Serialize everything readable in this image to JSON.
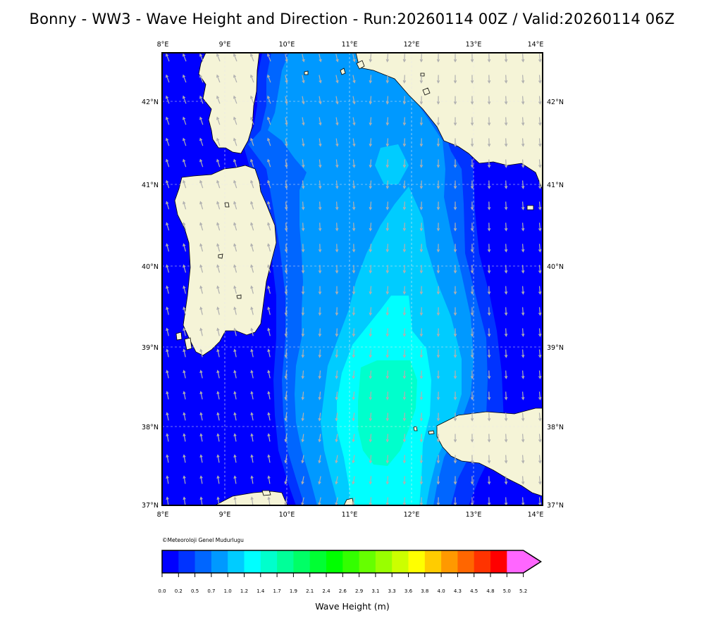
{
  "title": "Bonny - WW3 - Wave Height and Direction - Run:20260114 00Z / Valid:20260114 06Z",
  "credit": "©Meteoroloji Genel Mudurlugu",
  "map": {
    "lon_labels": [
      "8°E",
      "9°E",
      "10°E",
      "11°E",
      "12°E",
      "13°E",
      "14°E"
    ],
    "lat_labels": [
      "42°N",
      "41°N",
      "40°N",
      "39°N",
      "38°N",
      "37°N"
    ],
    "land_color": "#f5f4d7",
    "arrow_color": "#b0b0b0"
  },
  "colorbar": {
    "title": "Wave Height (m)",
    "ticks": [
      "0.0",
      "0.2",
      "0.5",
      "0.7",
      "1.0",
      "1.2",
      "1.4",
      "1.7",
      "1.9",
      "2.1",
      "2.4",
      "2.6",
      "2.9",
      "3.1",
      "3.3",
      "3.6",
      "3.8",
      "4.0",
      "4.3",
      "4.5",
      "4.8",
      "5.0",
      "5.2"
    ],
    "colors": [
      "#0000ff",
      "#0033ff",
      "#0066ff",
      "#0099ff",
      "#00ccff",
      "#00ffff",
      "#00ffcc",
      "#00ff99",
      "#00ff66",
      "#00ff33",
      "#00ff00",
      "#33ff00",
      "#66ff00",
      "#99ff00",
      "#ccff00",
      "#ffff00",
      "#ffcc00",
      "#ff9900",
      "#ff6600",
      "#ff3300",
      "#ff0000",
      "#ff66ff"
    ]
  }
}
